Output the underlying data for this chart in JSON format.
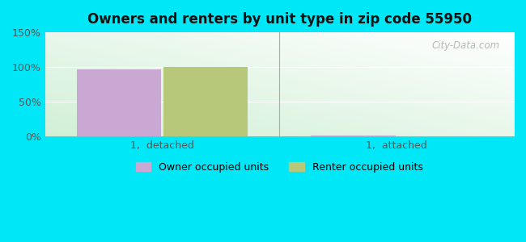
{
  "title": "Owners and renters by unit type in zip code 55950",
  "categories": [
    "1,  detached",
    "1,  attached"
  ],
  "owner_values": [
    97,
    1
  ],
  "renter_values": [
    100,
    0
  ],
  "owner_color": "#c9a8d4",
  "renter_color": "#b8c87a",
  "ylim": [
    0,
    150
  ],
  "yticks": [
    0,
    50,
    100,
    150
  ],
  "ytick_labels": [
    "0%",
    "50%",
    "100%",
    "150%"
  ],
  "legend_owner": "Owner occupied units",
  "legend_renter": "Renter occupied units",
  "bar_width": 0.18,
  "group_positions": [
    0.25,
    0.75
  ],
  "background_color": "#00e8f8",
  "watermark": "City-Data.com"
}
